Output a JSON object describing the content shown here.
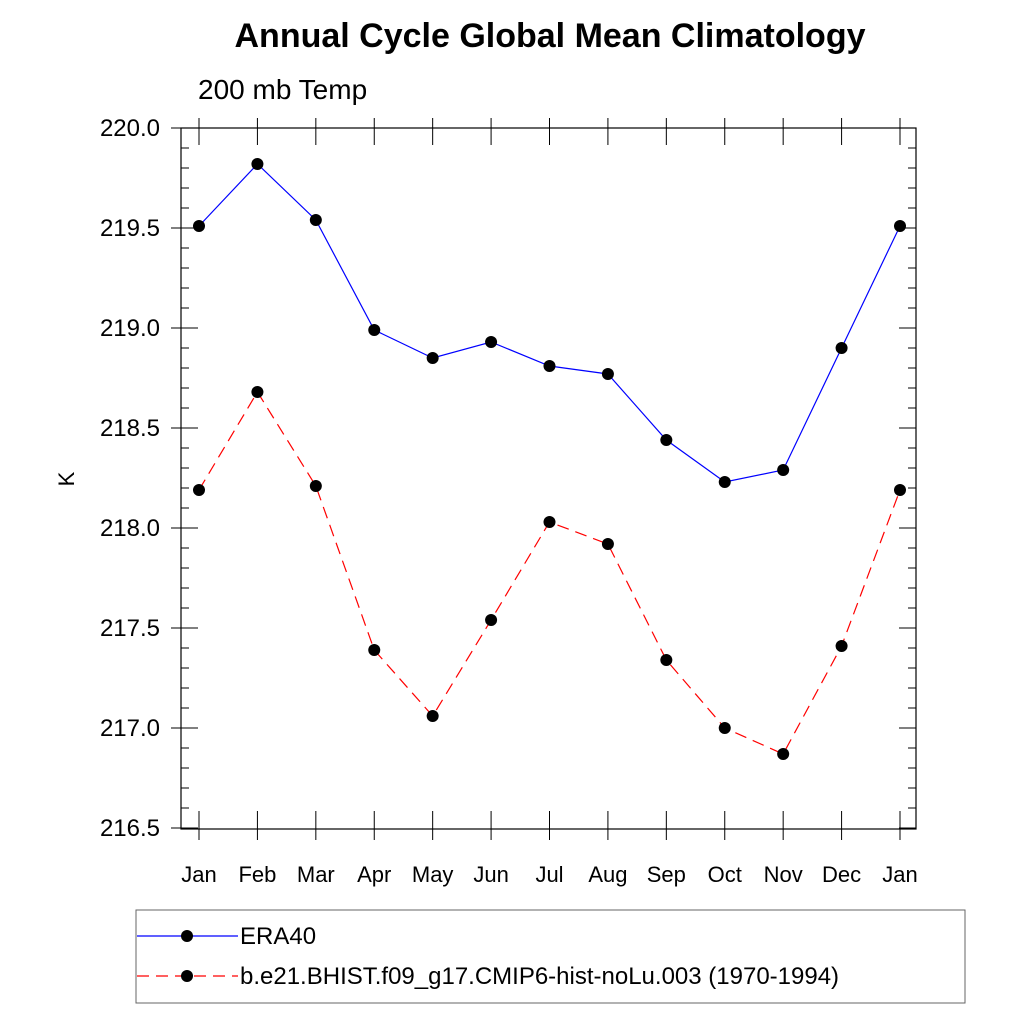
{
  "chart_data": {
    "type": "line",
    "title": "Annual Cycle Global Mean Climatology",
    "subtitle": "200 mb Temp",
    "xlabel": "",
    "ylabel": "K",
    "categories": [
      "Jan",
      "Feb",
      "Mar",
      "Apr",
      "May",
      "Jun",
      "Jul",
      "Aug",
      "Sep",
      "Oct",
      "Nov",
      "Dec",
      "Jan"
    ],
    "ylim": [
      216.5,
      220.0
    ],
    "yticks": [
      "216.5",
      "217.0",
      "217.5",
      "218.0",
      "218.5",
      "219.0",
      "219.5",
      "220.0"
    ],
    "grid": false,
    "legend_position": "bottom",
    "series": [
      {
        "name": "ERA40",
        "color": "#0000ff",
        "line_style": "solid",
        "marker": "filled-circle",
        "values": [
          219.51,
          219.82,
          219.54,
          218.99,
          218.85,
          218.93,
          218.81,
          218.77,
          218.44,
          218.23,
          218.29,
          218.9,
          219.51
        ]
      },
      {
        "name": "b.e21.BHIST.f09_g17.CMIP6-hist-noLu.003 (1970-1994)",
        "color": "#ff0000",
        "line_style": "dashed",
        "marker": "filled-circle",
        "values": [
          218.19,
          218.68,
          218.21,
          217.39,
          217.06,
          217.54,
          218.03,
          217.92,
          217.34,
          217.0,
          216.87,
          217.41,
          218.19
        ]
      }
    ]
  }
}
